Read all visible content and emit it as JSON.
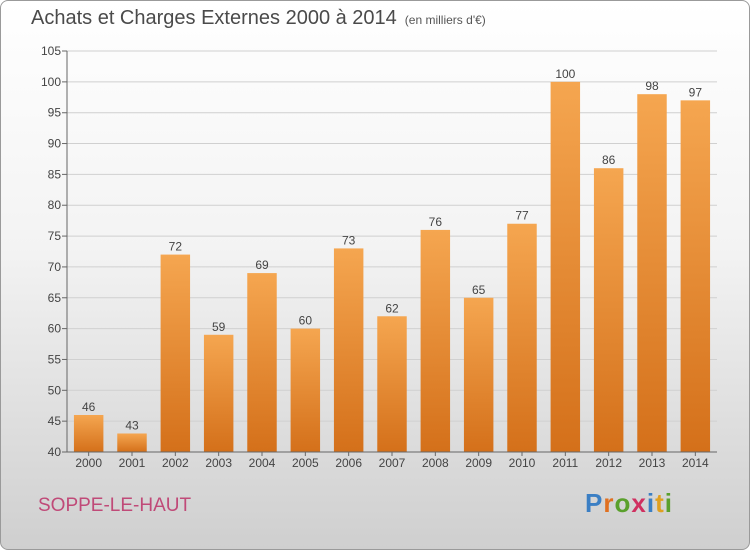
{
  "title": "Achats et Charges Externes 2000 à 2014",
  "unit": "(en milliers d'€)",
  "place": "SOPPE-LE-HAUT",
  "logo": {
    "text": "Proxiti",
    "colors": [
      "#3b7fc4",
      "#e07020",
      "#5aa02c",
      "#d03060",
      "#3b7fc4",
      "#e0a020",
      "#5aa02c"
    ]
  },
  "chart_data": {
    "type": "bar",
    "categories": [
      "2000",
      "2001",
      "2002",
      "2003",
      "2004",
      "2005",
      "2006",
      "2007",
      "2008",
      "2009",
      "2010",
      "2011",
      "2012",
      "2013",
      "2014"
    ],
    "values": [
      46,
      43,
      72,
      59,
      69,
      60,
      73,
      62,
      76,
      65,
      77,
      100,
      86,
      98,
      97
    ],
    "ylim": [
      40,
      105
    ],
    "yticks": [
      40,
      45,
      50,
      55,
      60,
      65,
      70,
      75,
      80,
      85,
      90,
      95,
      100,
      105
    ],
    "grid": true,
    "bar_color_top": "#f5a650",
    "bar_color_bottom": "#d4701a"
  }
}
